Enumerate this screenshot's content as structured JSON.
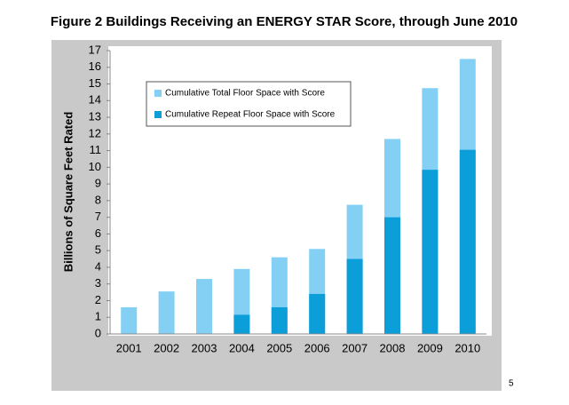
{
  "chart_data": {
    "type": "overlapping_bar",
    "title": "Figure 2 Buildings Receiving an ENERGY STAR Score, through June 2010",
    "y_label": "Billions of Square  Feet Rated",
    "categories": [
      "2001",
      "2002",
      "2003",
      "2004",
      "2005",
      "2006",
      "2007",
      "2008",
      "2009",
      "2010"
    ],
    "series": [
      {
        "name": "Cumulative Total Floor Space with Score",
        "color": "#84d0f4",
        "values": [
          1.6,
          2.55,
          3.3,
          3.9,
          4.6,
          5.1,
          7.75,
          11.7,
          14.75,
          16.5
        ]
      },
      {
        "name": "Cumulative Repeat Floor Space with Score",
        "color": "#0b9ed8",
        "values": [
          null,
          null,
          null,
          1.15,
          1.6,
          2.4,
          4.5,
          7.0,
          9.85,
          11.05
        ]
      }
    ],
    "ylim": [
      0,
      17
    ],
    "yticks": [
      0,
      1,
      2,
      3,
      4,
      5,
      6,
      7,
      8,
      9,
      10,
      11,
      12,
      13,
      14,
      15,
      16,
      17
    ],
    "grid": false,
    "legend": "upper left"
  },
  "page_number": "5"
}
